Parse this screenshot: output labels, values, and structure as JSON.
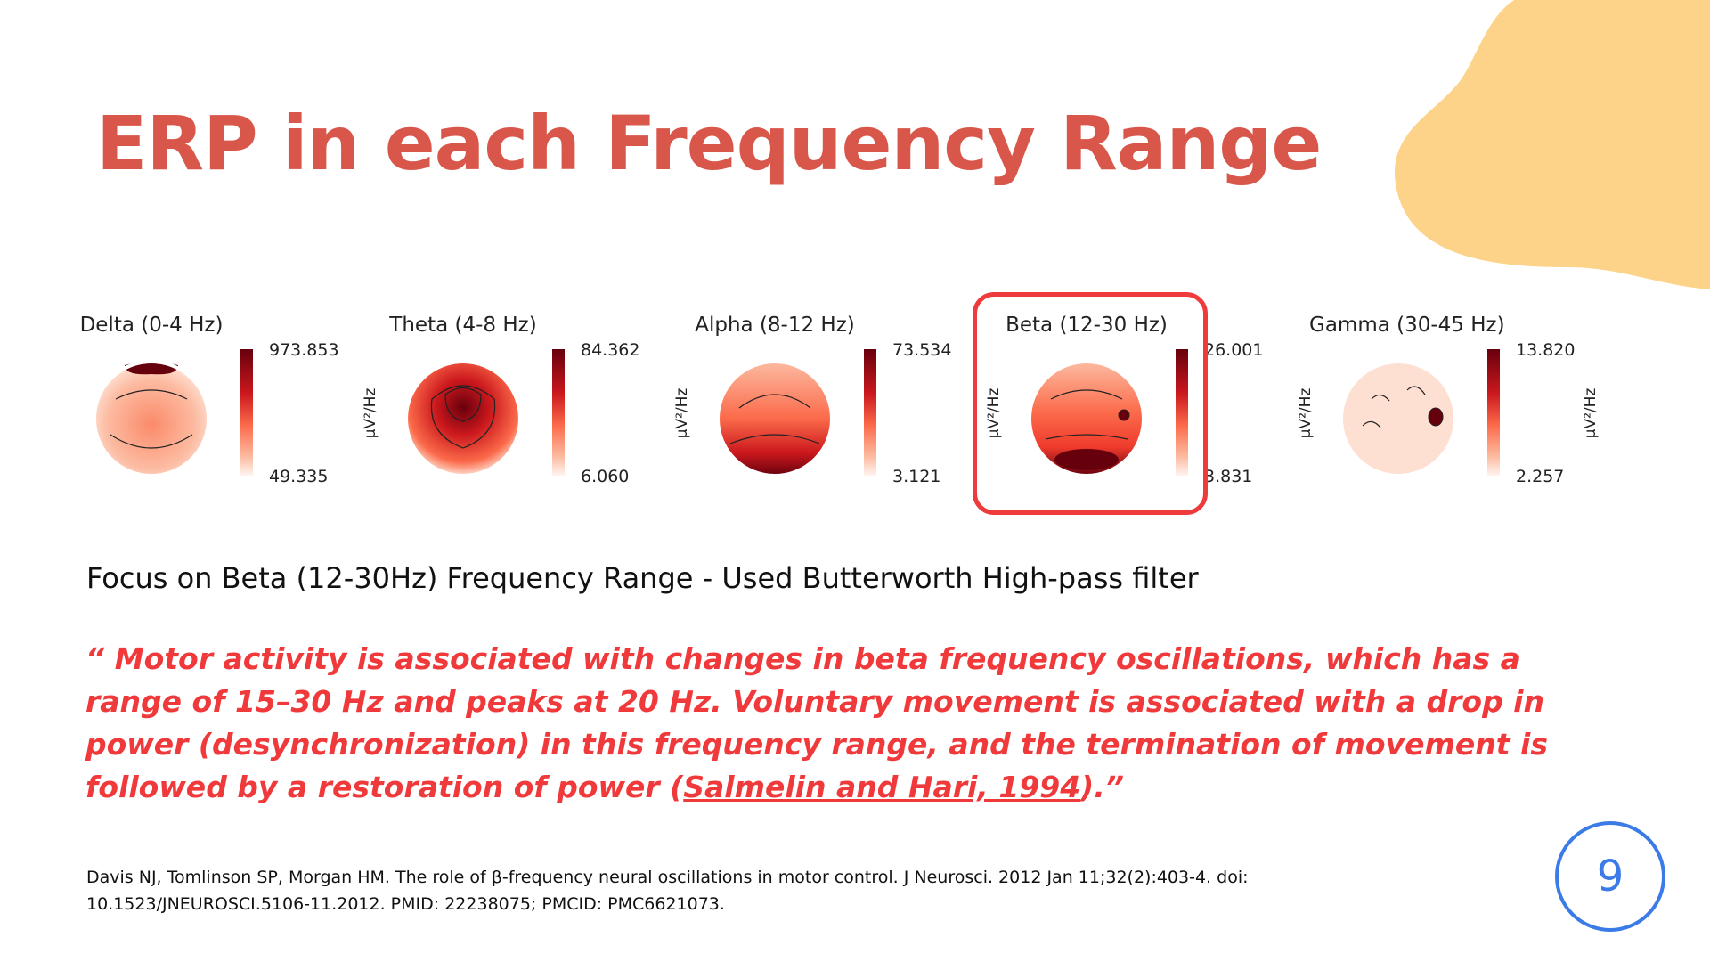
{
  "slide": {
    "title": "ERP in each Frequency Range",
    "accent_color": "#d9574a",
    "blob_color": "#fdd389"
  },
  "topomaps": [
    {
      "label": "Delta (0-4 Hz)",
      "max": "973.853",
      "min": "49.335",
      "unit": "µV²/Hz"
    },
    {
      "label": "Theta (4-8 Hz)",
      "max": "84.362",
      "min": "6.060",
      "unit": "µV²/Hz"
    },
    {
      "label": "Alpha (8-12 Hz)",
      "max": "73.534",
      "min": "3.121",
      "unit": "µV²/Hz"
    },
    {
      "label": "Beta (12-30 Hz)",
      "max": "26.001",
      "min": "3.831",
      "unit": "µV²/Hz",
      "highlighted": true
    },
    {
      "label": "Gamma (30-45 Hz)",
      "max": "13.820",
      "min": "2.257",
      "unit": "µV²/Hz"
    }
  ],
  "focus_text": "Focus on Beta (12-30Hz) Frequency Range  -  Used Butterworth High-pass filter",
  "quote": {
    "part1": "“ Motor activity is associated with changes in beta frequency oscillations, which has a range of 15–30 Hz and peaks at     20 Hz. Voluntary movement is associated with a drop in power (desynchronization) in this frequency range, and the termination of movement is followed by a restoration of power (",
    "citation": "Salmelin and Hari, 1994",
    "part2": ").”",
    "color": "#f0393a"
  },
  "reference": "Davis NJ, Tomlinson SP, Morgan HM. The role of β-frequency neural oscillations in motor control. J Neurosci. 2012 Jan 11;32(2):403-4. doi: 10.1523/JNEUROSCI.5106-11.2012. PMID: 22238075; PMCID: PMC6621073.",
  "page_number": "9"
}
